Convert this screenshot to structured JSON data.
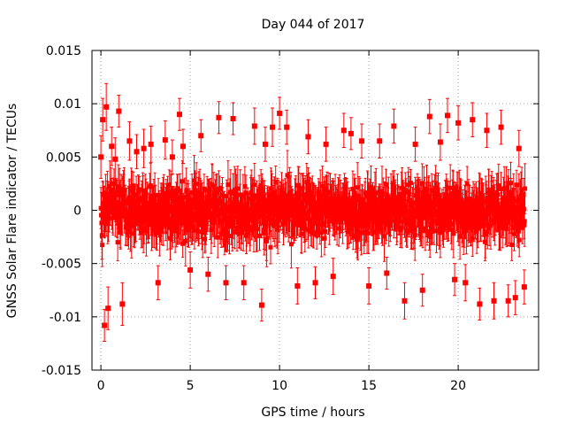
{
  "chart_data": {
    "type": "scatter",
    "title": "Day 044 of 2017",
    "xlabel": "GPS time / hours",
    "ylabel": "GNSS Solar Flare indicator / TECUs",
    "xlim": [
      -0.5,
      24.5
    ],
    "ylim": [
      -0.015,
      0.015
    ],
    "x_ticks": [
      0,
      5,
      10,
      15,
      20
    ],
    "x_tick_labels": [
      "0",
      "5",
      "10",
      "15",
      "20"
    ],
    "y_ticks": [
      -0.015,
      -0.01,
      -0.005,
      0,
      0.005,
      0.01,
      0.015
    ],
    "y_tick_labels": [
      "-0.015",
      "-0.01",
      "-0.005",
      "0",
      "0.005",
      "0.01",
      "0.015"
    ],
    "grid": true,
    "legend": "none",
    "series": [
      {
        "color": "#ff0000",
        "marker": "square",
        "error_bars": true,
        "x": [
          0.0,
          0.1,
          0.2,
          0.3,
          0.4,
          0.6,
          0.8,
          1.0,
          1.2,
          1.6,
          2.0,
          2.4,
          2.8,
          3.2,
          3.6,
          4.0,
          4.4,
          4.6,
          5.0,
          5.6,
          6.0,
          6.6,
          7.0,
          7.4,
          8.0,
          8.6,
          9.0,
          9.2,
          9.6,
          10.0,
          10.4,
          11.0,
          11.6,
          12.0,
          12.6,
          13.0,
          13.6,
          14.0,
          14.6,
          15.0,
          15.6,
          16.0,
          16.4,
          17.0,
          17.6,
          18.0,
          18.4,
          19.0,
          19.4,
          19.8,
          20.0,
          20.4,
          20.8,
          21.2,
          21.6,
          22.0,
          22.4,
          22.8,
          23.2,
          23.4,
          23.7
        ],
        "y": [
          0.005,
          0.0085,
          -0.0108,
          0.0097,
          -0.0092,
          0.006,
          0.0048,
          0.0093,
          -0.0088,
          0.0065,
          0.0055,
          0.0058,
          0.0062,
          -0.0068,
          0.0066,
          0.005,
          0.009,
          0.006,
          -0.0056,
          0.007,
          -0.006,
          0.0087,
          -0.0068,
          0.0086,
          -0.0068,
          0.0079,
          -0.0089,
          0.0062,
          0.0078,
          0.0091,
          0.0078,
          -0.0071,
          0.0069,
          -0.0068,
          0.0062,
          -0.0062,
          0.0075,
          0.0072,
          0.0065,
          -0.0071,
          0.0065,
          -0.0059,
          0.0079,
          -0.0085,
          0.0062,
          -0.0075,
          0.0088,
          0.0064,
          0.0089,
          -0.0065,
          0.0082,
          -0.0068,
          0.0085,
          -0.0088,
          0.0075,
          -0.0085,
          0.0078,
          -0.0085,
          -0.0082,
          0.0058,
          -0.0072
        ],
        "err": [
          0.002,
          0.002,
          0.0015,
          0.0022,
          0.002,
          0.0018,
          0.002,
          0.0015,
          0.002,
          0.0018,
          0.0016,
          0.0018,
          0.0017,
          0.0016,
          0.0018,
          0.0016,
          0.0015,
          0.0016,
          0.0017,
          0.0015,
          0.0016,
          0.0015,
          0.0016,
          0.0015,
          0.0016,
          0.0017,
          0.0015,
          0.0016,
          0.0018,
          0.0015,
          0.0016,
          0.0017,
          0.0016,
          0.0015,
          0.0016,
          0.0017,
          0.0016,
          0.0015,
          0.0016,
          0.0017,
          0.0016,
          0.0015,
          0.0016,
          0.0017,
          0.0016,
          0.0015,
          0.0016,
          0.0017,
          0.0016,
          0.0015,
          0.0016,
          0.0017,
          0.0016,
          0.0015,
          0.0016,
          0.0017,
          0.0016,
          0.0015,
          0.0016,
          0.0017,
          0.0016
        ]
      }
    ]
  }
}
